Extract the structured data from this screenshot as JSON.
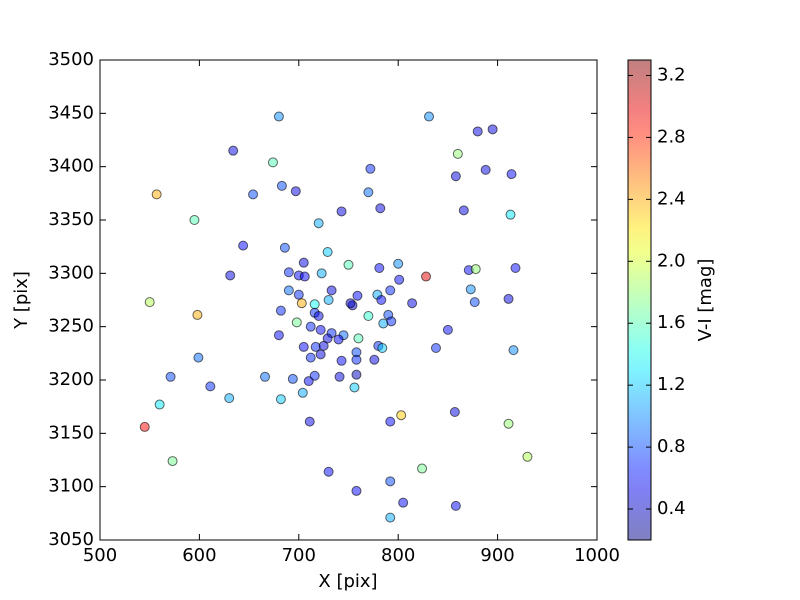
{
  "chart_data": {
    "type": "scatter",
    "xlabel": "X [pix]",
    "ylabel": "Y [pix]",
    "xlim": [
      500,
      1000
    ],
    "xticks": [
      500,
      600,
      700,
      800,
      900,
      1000
    ],
    "ylim": [
      3050,
      3500
    ],
    "yticks": [
      3050,
      3100,
      3150,
      3200,
      3250,
      3300,
      3350,
      3400,
      3450,
      3500
    ],
    "colormap": "jet",
    "colorbar": {
      "label": "V-I [mag]",
      "clim": [
        0.2,
        3.3
      ],
      "ticks": [
        0.4,
        0.8,
        1.2,
        1.6,
        {
          "value": 2,
          "label": "2.0"
        },
        2.4,
        2.8,
        3.2
      ]
    },
    "x": [
      680,
      831,
      880,
      895,
      634,
      674,
      860,
      772,
      858,
      888,
      914,
      557,
      654,
      683,
      697,
      770,
      782,
      743,
      866,
      913,
      595,
      720,
      644,
      686,
      729,
      705,
      750,
      800,
      871,
      878,
      918,
      631,
      690,
      700,
      706,
      723,
      781,
      828,
      801,
      550,
      598,
      690,
      700,
      733,
      759,
      779,
      792,
      703,
      716,
      730,
      754,
      752,
      783,
      814,
      873,
      877,
      911,
      682,
      716,
      720,
      770,
      790,
      785,
      793,
      698,
      712,
      722,
      733,
      745,
      850,
      680,
      729,
      740,
      760,
      780,
      784,
      705,
      717,
      725,
      838,
      916,
      599,
      712,
      722,
      758,
      758,
      743,
      776,
      571,
      666,
      694,
      710,
      716,
      741,
      758,
      611,
      630,
      682,
      704,
      756,
      560,
      803,
      857,
      711,
      792,
      545,
      911,
      573,
      930,
      824,
      730,
      792,
      758,
      805,
      858,
      792
    ],
    "y": [
      3447,
      3447,
      3433,
      3435,
      3415,
      3404,
      3412,
      3398,
      3391,
      3397,
      3393,
      3374,
      3374,
      3382,
      3377,
      3376,
      3361,
      3358,
      3359,
      3355,
      3350,
      3347,
      3326,
      3324,
      3320,
      3310,
      3308,
      3309,
      3303,
      3304,
      3305,
      3298,
      3301,
      3298,
      3297,
      3300,
      3305,
      3297,
      3294,
      3273,
      3261,
      3284,
      3280,
      3284,
      3279,
      3280,
      3284,
      3272,
      3271,
      3275,
      3270,
      3272,
      3275,
      3272,
      3285,
      3273,
      3276,
      3265,
      3263,
      3260,
      3260,
      3261,
      3253,
      3255,
      3254,
      3250,
      3247,
      3244,
      3242,
      3247,
      3242,
      3239,
      3238,
      3239,
      3232,
      3230,
      3231,
      3231,
      3232,
      3230,
      3228,
      3221,
      3221,
      3224,
      3226,
      3219,
      3218,
      3219,
      3203,
      3203,
      3201,
      3199,
      3204,
      3203,
      3205,
      3194,
      3183,
      3182,
      3188,
      3193,
      3177,
      3167,
      3170,
      3161,
      3161,
      3156,
      3159,
      3124,
      3128,
      3117,
      3114,
      3105,
      3096,
      3085,
      3082,
      3071
    ],
    "colors": [
      1.0,
      1.0,
      0.5,
      0.5,
      0.5,
      1.6,
      1.8,
      0.7,
      0.5,
      0.5,
      0.6,
      2.4,
      0.8,
      0.8,
      0.5,
      0.9,
      0.5,
      0.5,
      0.5,
      1.3,
      1.6,
      1.1,
      0.6,
      0.8,
      1.2,
      0.5,
      1.6,
      1.0,
      0.6,
      1.8,
      0.6,
      0.5,
      0.7,
      0.6,
      0.6,
      1.1,
      0.6,
      3.0,
      0.6,
      1.9,
      2.4,
      0.9,
      0.7,
      0.5,
      0.6,
      1.1,
      0.7,
      2.4,
      1.4,
      1.1,
      0.5,
      0.4,
      0.6,
      0.5,
      1.0,
      0.8,
      0.5,
      0.7,
      0.7,
      0.5,
      1.5,
      0.8,
      1.1,
      0.7,
      1.7,
      0.7,
      0.6,
      0.7,
      0.9,
      0.6,
      0.6,
      0.5,
      0.6,
      1.6,
      0.7,
      1.2,
      0.6,
      0.7,
      0.5,
      0.7,
      1.0,
      0.9,
      0.7,
      0.5,
      0.8,
      0.7,
      0.6,
      0.5,
      0.8,
      0.9,
      0.8,
      0.6,
      0.7,
      0.5,
      0.4,
      0.7,
      1.1,
      1.2,
      1.1,
      1.2,
      1.3,
      2.3,
      0.5,
      0.5,
      0.6,
      2.9,
      1.8,
      1.7,
      1.9,
      1.7,
      0.6,
      0.8,
      0.6,
      0.6,
      0.6,
      1.1
    ]
  }
}
